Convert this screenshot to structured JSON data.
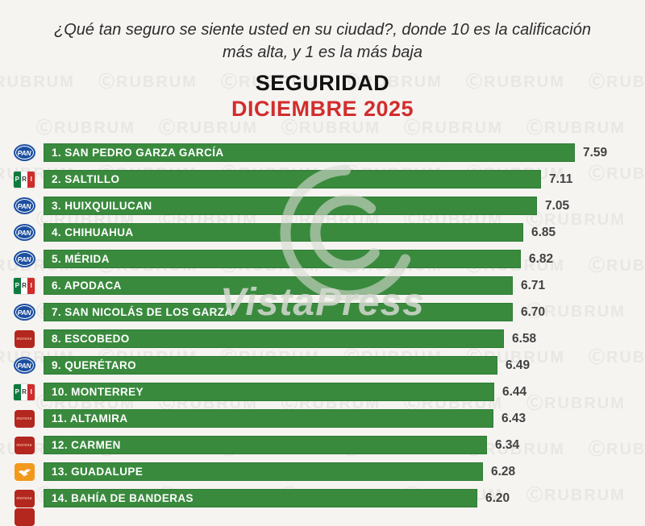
{
  "header": {
    "question": "¿Qué tan seguro se siente usted en su ciudad?, donde 10 es la calificación más alta, y  1 es la más baja",
    "title": "SEGURIDAD",
    "subtitle": "DICIEMBRE 2025",
    "subtitle_color": "#d22d2d"
  },
  "watermarks": {
    "tile_prefix": "Ⓒ",
    "tile_text": "RUBRUM",
    "center_text": "VistaPress",
    "center_icon": "copyright-icon"
  },
  "parties": {
    "pan": {
      "id": "pan",
      "name": "PAN",
      "color": "#1c4fa0",
      "text_color": "#ffffff"
    },
    "pri": {
      "id": "pri",
      "name": "PRI",
      "band_colors": [
        "#0f7a3d",
        "#ffffff",
        "#cf2c2c"
      ],
      "letter_colors": [
        "#ffffff",
        "#3a3a3a",
        "#ffffff"
      ]
    },
    "morena": {
      "id": "morena",
      "name": "morena",
      "color": "#b4271e",
      "text_color": "#f0a492"
    },
    "mc": {
      "id": "mc",
      "name": "MC",
      "color": "#f2991c",
      "icon": "eagle-icon"
    }
  },
  "chart_data": {
    "type": "bar",
    "orientation": "horizontal",
    "title": "SEGURIDAD",
    "subtitle": "DICIEMBRE 2025",
    "question": "¿Qué tan seguro se siente usted en su ciudad?, donde 10 es la calificación más alta, y 1 es la más baja",
    "value_range": [
      1,
      10
    ],
    "bar_color": "#3a8a3e",
    "categories": [
      "SAN PEDRO GARZA GARCÍA",
      "SALTILLO",
      "HUIXQUILUCAN",
      "CHIHUAHUA",
      "MÉRIDA",
      "APODACA",
      "SAN NICOLÁS DE LOS GARZA",
      "ESCOBEDO",
      "QUERÉTARO",
      "MONTERREY",
      "ALTAMIRA",
      "CARMEN",
      "GUADALUPE",
      "BAHÍA DE BANDERAS"
    ],
    "values": [
      7.59,
      7.11,
      7.05,
      6.85,
      6.82,
      6.71,
      6.7,
      6.58,
      6.49,
      6.44,
      6.43,
      6.34,
      6.28,
      6.2
    ],
    "items": [
      {
        "rank": 1,
        "label": "1. SAN PEDRO GARZA GARCÍA",
        "city": "SAN PEDRO GARZA GARCÍA",
        "party": "pan",
        "value": 7.59,
        "value_label": "7.59"
      },
      {
        "rank": 2,
        "label": "2. SALTILLO",
        "city": "SALTILLO",
        "party": "pri",
        "value": 7.11,
        "value_label": "7.11"
      },
      {
        "rank": 3,
        "label": "3. HUIXQUILUCAN",
        "city": "HUIXQUILUCAN",
        "party": "pan",
        "value": 7.05,
        "value_label": "7.05"
      },
      {
        "rank": 4,
        "label": "4. CHIHUAHUA",
        "city": "CHIHUAHUA",
        "party": "pan",
        "value": 6.85,
        "value_label": "6.85"
      },
      {
        "rank": 5,
        "label": "5. MÉRIDA",
        "city": "MÉRIDA",
        "party": "pan",
        "value": 6.82,
        "value_label": "6.82"
      },
      {
        "rank": 6,
        "label": "6. APODACA",
        "city": "APODACA",
        "party": "pri",
        "value": 6.71,
        "value_label": "6.71"
      },
      {
        "rank": 7,
        "label": "7. SAN NICOLÁS DE LOS GARZA",
        "city": "SAN NICOLÁS DE LOS GARZA",
        "party": "pan",
        "value": 6.7,
        "value_label": "6.70"
      },
      {
        "rank": 8,
        "label": "8. ESCOBEDO",
        "city": "ESCOBEDO",
        "party": "morena",
        "value": 6.58,
        "value_label": "6.58"
      },
      {
        "rank": 9,
        "label": "9. QUERÉTARO",
        "city": "QUERÉTARO",
        "party": "pan",
        "value": 6.49,
        "value_label": "6.49"
      },
      {
        "rank": 10,
        "label": "10. MONTERREY",
        "city": "MONTERREY",
        "party": "pri",
        "value": 6.44,
        "value_label": "6.44"
      },
      {
        "rank": 11,
        "label": "11. ALTAMIRA",
        "city": "ALTAMIRA",
        "party": "morena",
        "value": 6.43,
        "value_label": "6.43"
      },
      {
        "rank": 12,
        "label": "12. CARMEN",
        "city": "CARMEN",
        "party": "morena",
        "value": 6.34,
        "value_label": "6.34"
      },
      {
        "rank": 13,
        "label": "13. GUADALUPE",
        "city": "GUADALUPE",
        "party": "mc",
        "value": 6.28,
        "value_label": "6.28"
      },
      {
        "rank": 14,
        "label": "14. BAHÍA DE BANDERAS",
        "city": "BAHÍA DE BANDERAS",
        "party": "morena",
        "value": 6.2,
        "value_label": "6.20"
      }
    ],
    "next_row_partial_party": "morena"
  }
}
